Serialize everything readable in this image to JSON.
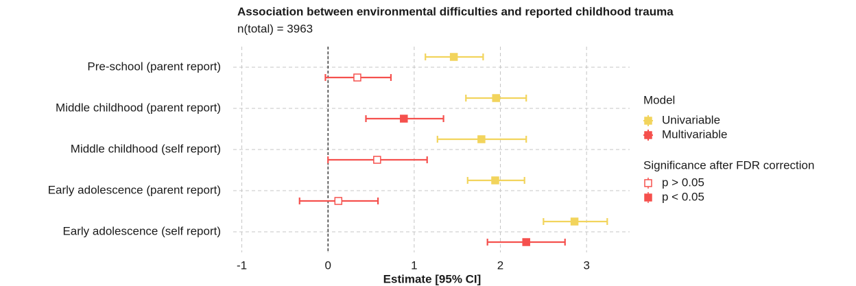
{
  "chart_data": {
    "type": "forest",
    "title": "Association between environmental difficulties and reported childhood trauma",
    "subtitle": "n(total) =  3963",
    "x_label": "Estimate [95% CI]",
    "categories": [
      "Pre-school (parent report)",
      "Middle childhood (parent report)",
      "Middle childhood (self report)",
      "Early adolescence (parent report)",
      "Early adolescence (self report)"
    ],
    "xlim": [
      -1.1,
      3.5
    ],
    "xticks": [
      -1,
      0,
      1,
      2,
      3
    ],
    "reference_line": 0,
    "grid": true,
    "legend_title": "Model",
    "series": [
      {
        "name": "Univariable",
        "color": "#f2d45c",
        "values": [
          1.46,
          1.95,
          1.78,
          1.94,
          2.86
        ],
        "lower": [
          1.13,
          1.6,
          1.27,
          1.62,
          2.5
        ],
        "upper": [
          1.8,
          2.3,
          2.3,
          2.28,
          3.24
        ],
        "filled": [
          true,
          true,
          true,
          true,
          true
        ]
      },
      {
        "name": "Multivariable",
        "color": "#f5504d",
        "values": [
          0.34,
          0.88,
          0.57,
          0.12,
          2.3
        ],
        "lower": [
          -0.03,
          0.44,
          0.0,
          -0.33,
          1.85
        ],
        "upper": [
          0.73,
          1.34,
          1.15,
          0.58,
          2.75
        ],
        "filled": [
          false,
          true,
          false,
          false,
          true
        ]
      }
    ],
    "significance_legend": {
      "title": "Significance after FDR correction",
      "items": [
        {
          "label": "p > 0.05",
          "filled": false
        },
        {
          "label": "p < 0.05",
          "filled": true
        }
      ]
    }
  }
}
